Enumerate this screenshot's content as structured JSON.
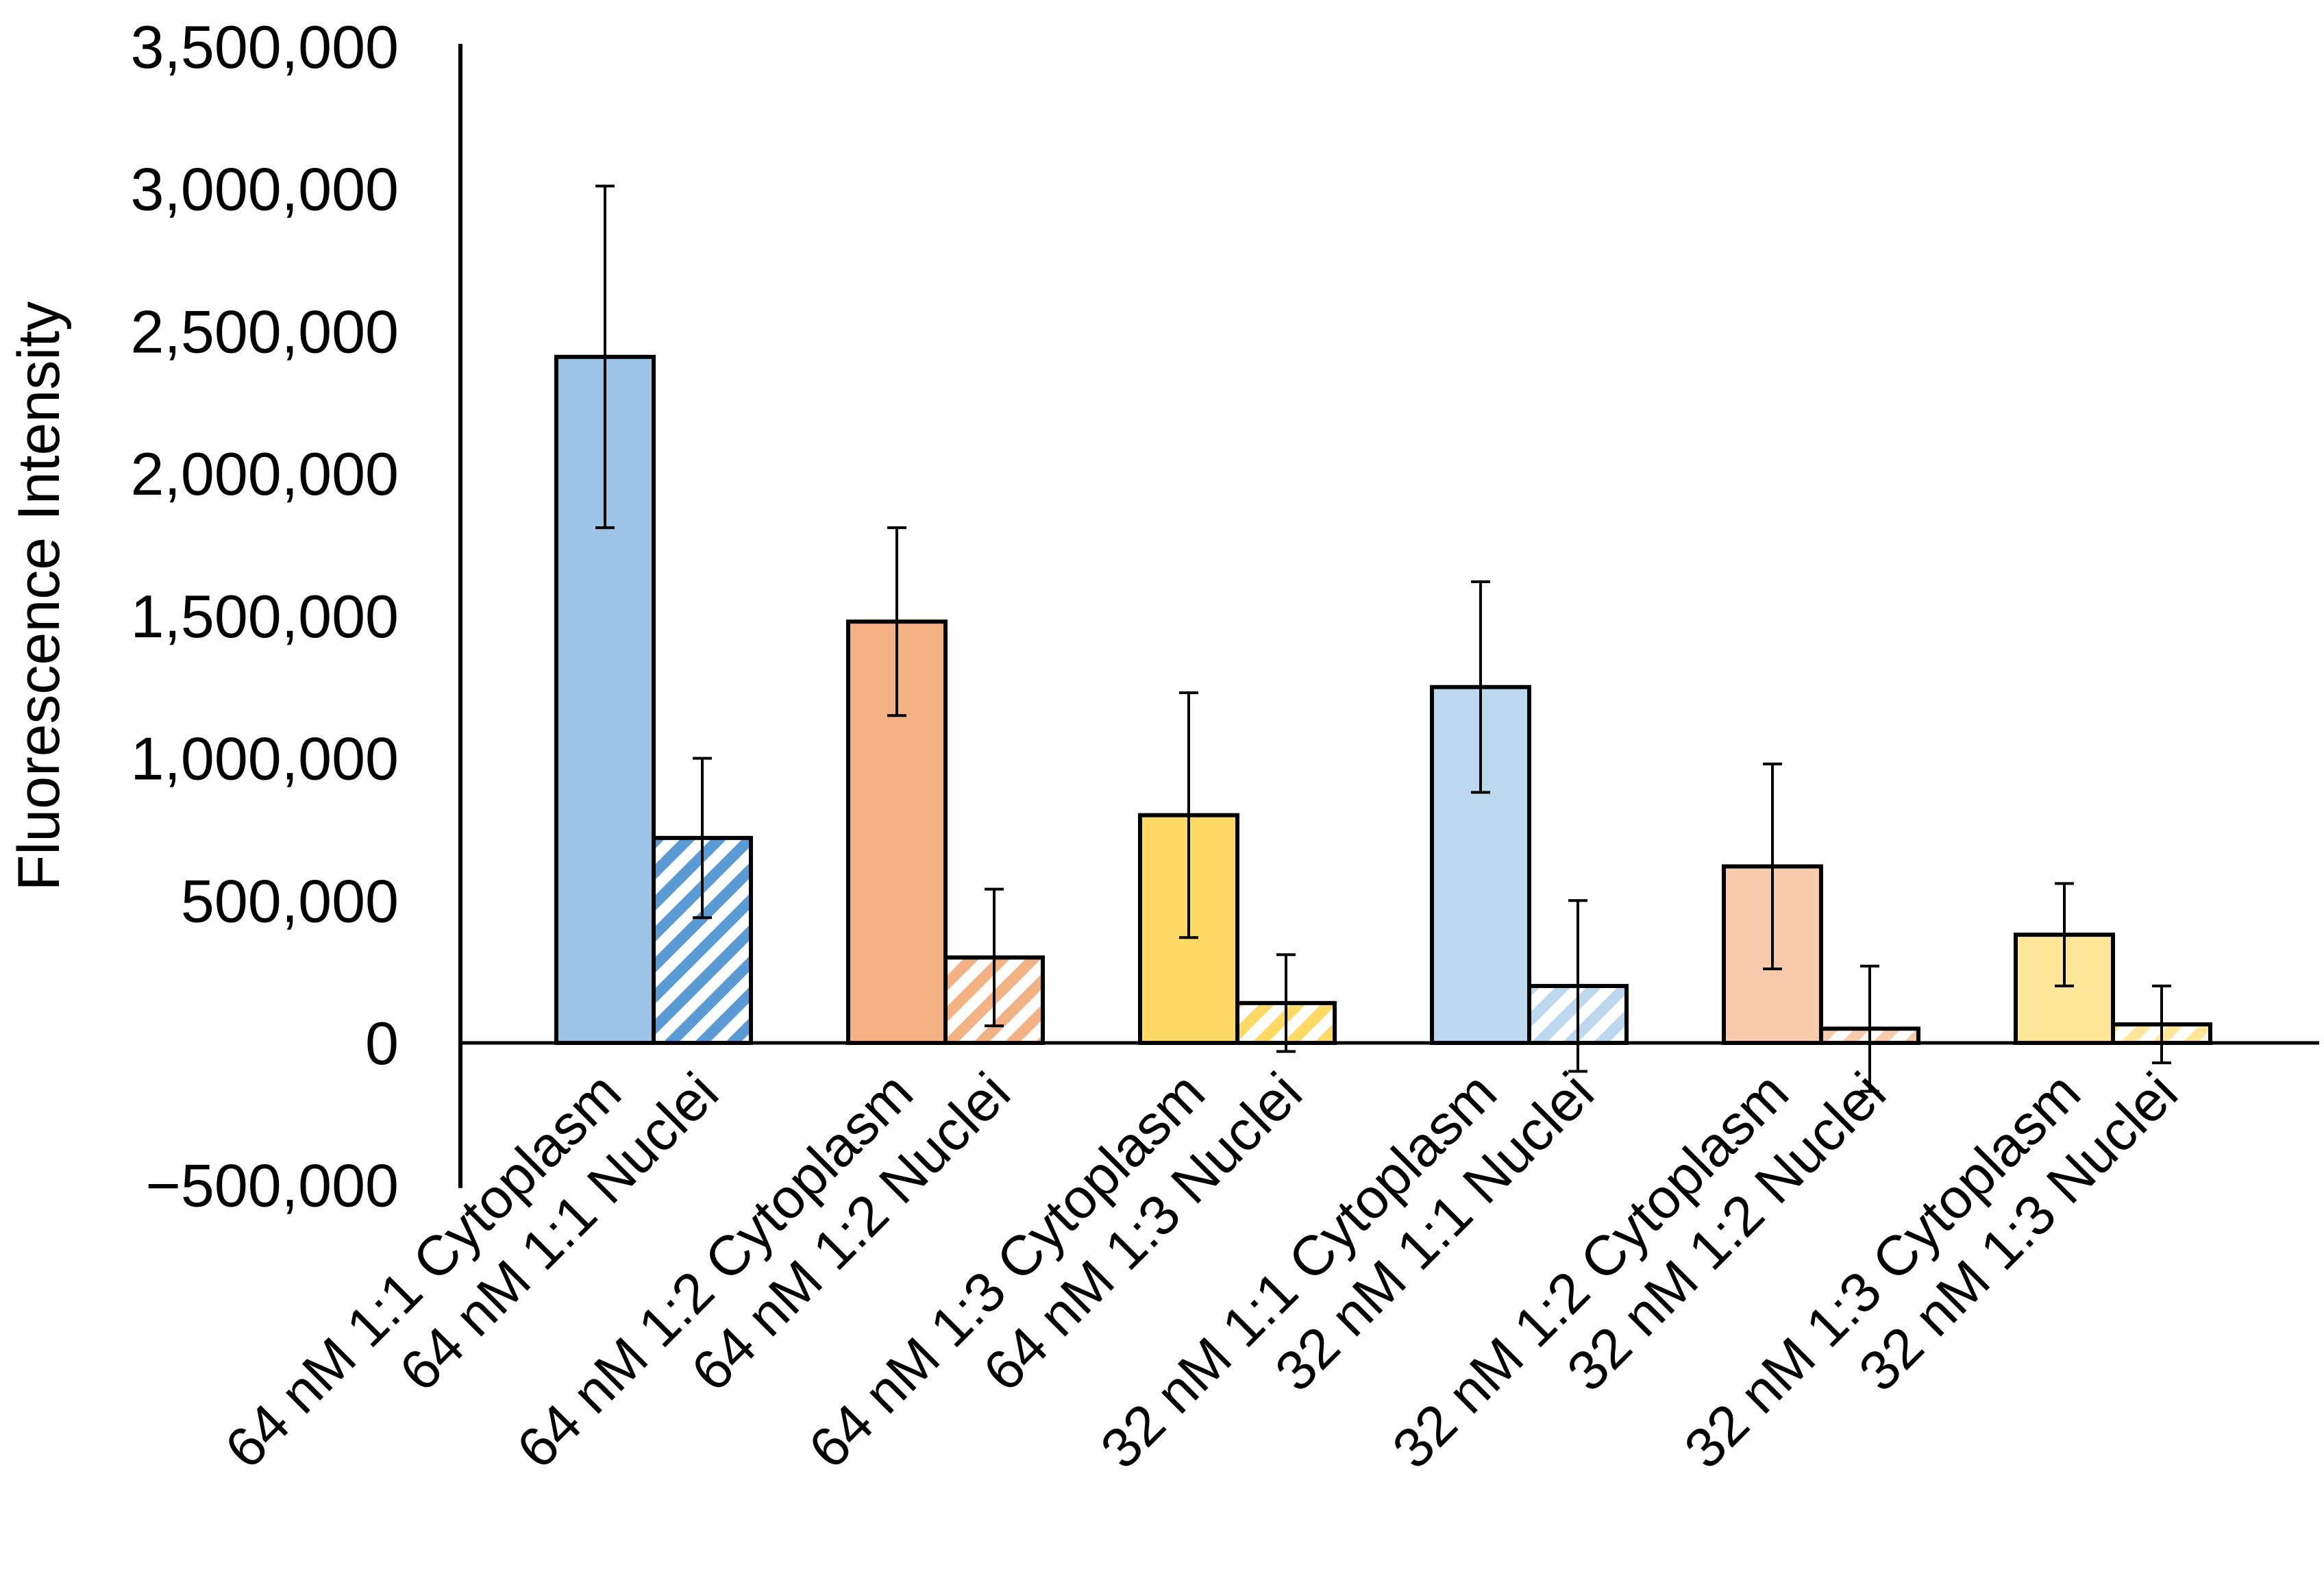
{
  "chart_data": {
    "type": "bar",
    "title": "",
    "xlabel": "",
    "ylabel": "Fluorescence Intensity",
    "ylim": [
      -500000,
      3500000
    ],
    "yticks": [
      -500000,
      0,
      500000,
      1000000,
      1500000,
      2000000,
      2500000,
      3000000,
      3500000
    ],
    "ytick_labels": [
      "−500,000",
      "0",
      "500,000",
      "1,000,000",
      "1,500,000",
      "2,000,000",
      "2,500,000",
      "3,000,000",
      "3,500,000"
    ],
    "grid": false,
    "legend": "none",
    "bars": [
      {
        "label": "64 nM 1:1 Cytoplasm",
        "value": 2410000,
        "error": 600000,
        "color": "#9dc3e6",
        "hatched": false
      },
      {
        "label": "64 nM 1:1 Nuclei",
        "value": 720000,
        "error": 280000,
        "color": "#5b9bd5",
        "hatched": true
      },
      {
        "label": "64 nM 1:2 Cytoplasm",
        "value": 1480000,
        "error": 330000,
        "color": "#f4b183",
        "hatched": false
      },
      {
        "label": "64 nM 1:2 Nuclei",
        "value": 300000,
        "error": 240000,
        "color": "#f4b183",
        "hatched": true
      },
      {
        "label": "64 nM 1:3 Cytoplasm",
        "value": 800000,
        "error": 430000,
        "color": "#ffd966",
        "hatched": false
      },
      {
        "label": "64 nM 1:3 Nuclei",
        "value": 140000,
        "error": 170000,
        "color": "#ffd966",
        "hatched": true
      },
      {
        "label": "32 nM 1:1 Cytoplasm",
        "value": 1250000,
        "error": 370000,
        "color": "#bdd7ee",
        "hatched": false
      },
      {
        "label": "32 nM 1:1 Nuclei",
        "value": 200000,
        "error": 300000,
        "color": "#bdd7ee",
        "hatched": true
      },
      {
        "label": "32 nM 1:2 Cytoplasm",
        "value": 620000,
        "error": 360000,
        "color": "#f8cbad",
        "hatched": false
      },
      {
        "label": "32 nM 1:2 Nuclei",
        "value": 50000,
        "error": 220000,
        "color": "#f8cbad",
        "hatched": true
      },
      {
        "label": "32 nM 1:3 Cytoplasm",
        "value": 380000,
        "error": 180000,
        "color": "#ffe699",
        "hatched": false
      },
      {
        "label": "32 nM 1:3 Nuclei",
        "value": 65000,
        "error": 135000,
        "color": "#ffe699",
        "hatched": true
      }
    ]
  }
}
